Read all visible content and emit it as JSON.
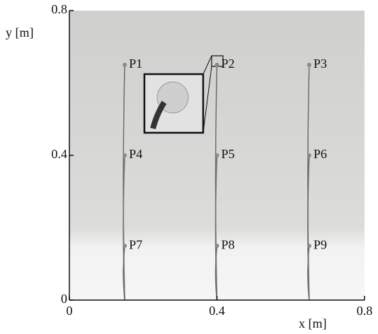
{
  "chart_data": {
    "type": "scatter",
    "x": [
      0.15,
      0.4,
      0.65,
      0.15,
      0.4,
      0.65,
      0.15,
      0.4,
      0.65
    ],
    "y": [
      0.65,
      0.65,
      0.65,
      0.4,
      0.4,
      0.4,
      0.15,
      0.15,
      0.15
    ],
    "labels": [
      "P1",
      "P2",
      "P3",
      "P4",
      "P5",
      "P6",
      "P7",
      "P8",
      "P9"
    ],
    "color": "#8a8a8a",
    "xlabel": "x [m]",
    "ylabel": "y [m]",
    "xlim": [
      0,
      0.8
    ],
    "ylim": [
      0,
      0.8
    ],
    "xticks": [
      0,
      0.4,
      0.8
    ],
    "yticks": [
      0,
      0.4,
      0.8
    ]
  }
}
